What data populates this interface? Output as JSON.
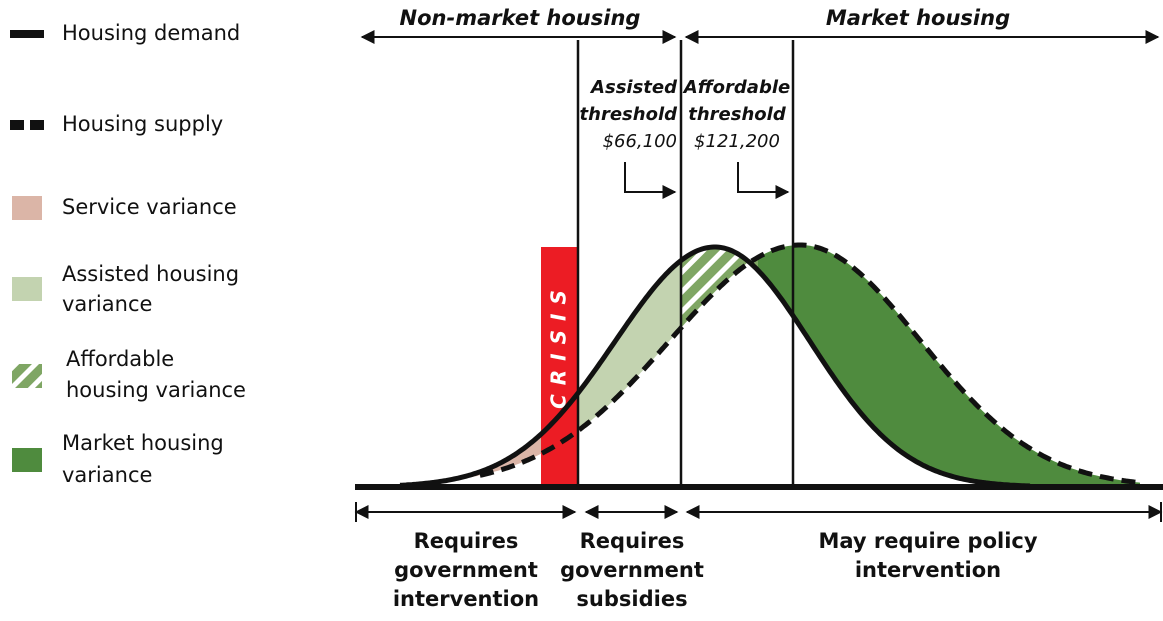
{
  "legend": [
    {
      "lines": [
        "Housing demand"
      ]
    },
    {
      "lines": [
        "Housing supply"
      ]
    },
    {
      "lines": [
        "Service variance"
      ]
    },
    {
      "lines": [
        "Assisted housing",
        "variance"
      ]
    },
    {
      "lines": [
        "Affordable",
        "housing variance"
      ]
    },
    {
      "lines": [
        "Market housing",
        "variance"
      ]
    }
  ],
  "top_labels": [
    "Non-market housing",
    "Market housing"
  ],
  "thresholds": [
    {
      "title": [
        "Assisted",
        "threshold"
      ],
      "amount": "$66,100"
    },
    {
      "title": [
        "Affordable",
        "threshold"
      ],
      "amount": "$121,200"
    }
  ],
  "crisis_label": "CRISIS",
  "bottom_labels": [
    [
      "Requires",
      "government",
      "intervention"
    ],
    [
      "Requires",
      "government",
      "subsidies"
    ],
    [
      "May require policy",
      "intervention"
    ]
  ]
}
